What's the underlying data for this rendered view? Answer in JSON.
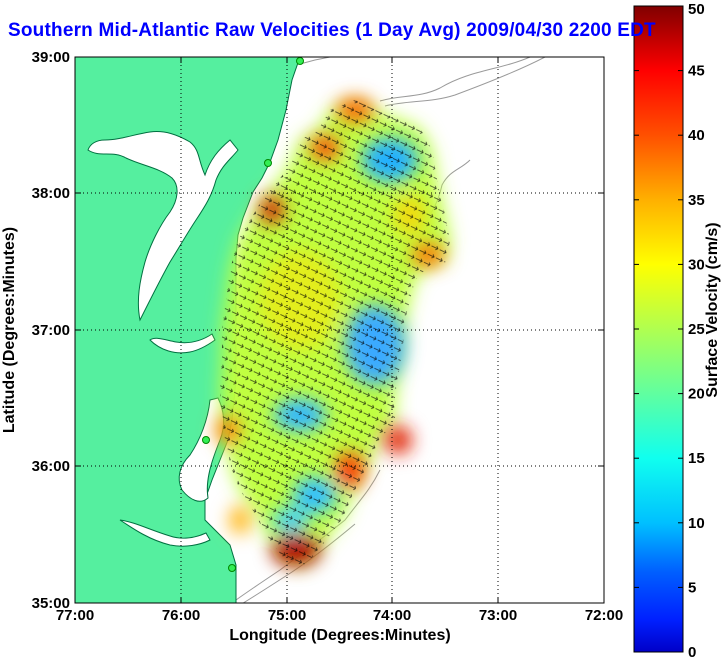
{
  "title": "Southern Mid-Atlantic Raw Velocities (1 Day Avg) 2009/04/30 2200 EDT",
  "chart_data": {
    "type": "heatmap",
    "title": "Southern Mid-Atlantic Raw Velocities (1 Day Avg) 2009/04/30 2200 EDT",
    "xlabel": "Longitude (Degrees:Minutes)",
    "ylabel": "Latitude (Degrees:Minutes)",
    "xlim": [
      -77,
      -72
    ],
    "ylim": [
      35,
      39
    ],
    "xticks": [
      "77:00",
      "76:00",
      "75:00",
      "74:00",
      "73:00",
      "72:00"
    ],
    "yticks": [
      "35:00",
      "36:00",
      "37:00",
      "38:00",
      "39:00"
    ],
    "grid": true,
    "colorbar": {
      "label": "Surface Velocity (cm/s)",
      "range": [
        0,
        50
      ],
      "ticks": [
        "0",
        "5",
        "10",
        "15",
        "20",
        "25",
        "30",
        "35",
        "40",
        "45",
        "50"
      ],
      "colormap": "jet"
    }
  },
  "colors": {
    "land": "#55ef9f",
    "title": "#0000ff"
  }
}
